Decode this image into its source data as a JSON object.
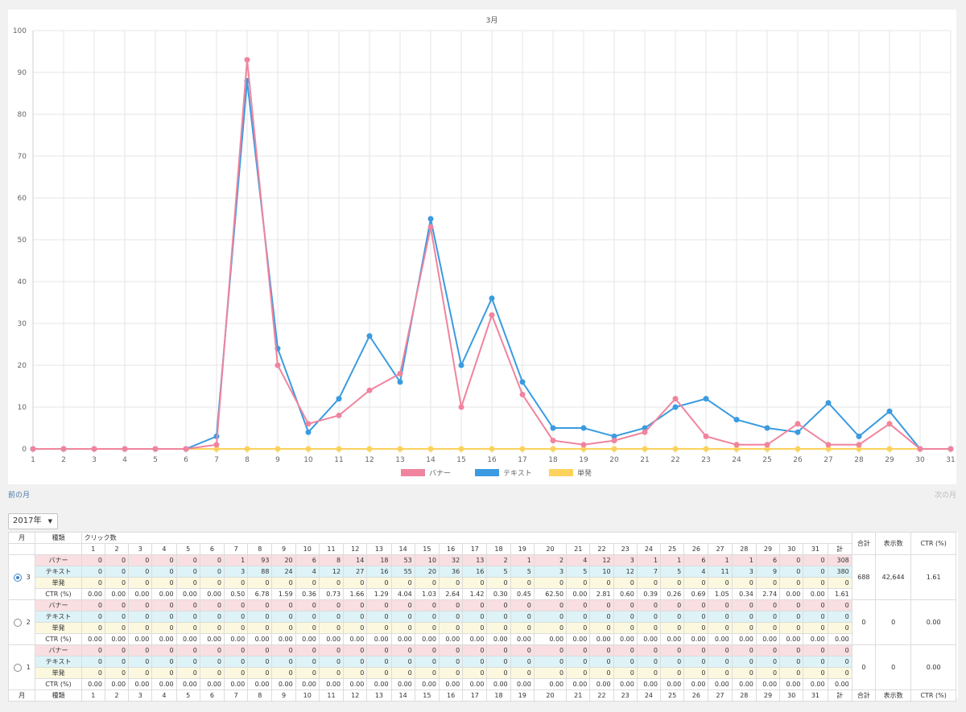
{
  "chart_data": {
    "type": "line",
    "title": "3月",
    "x": [
      1,
      2,
      3,
      4,
      5,
      6,
      7,
      8,
      9,
      10,
      11,
      12,
      13,
      14,
      15,
      16,
      17,
      18,
      19,
      20,
      21,
      22,
      23,
      24,
      25,
      26,
      27,
      28,
      29,
      30,
      31
    ],
    "series": [
      {
        "name": "バナー",
        "color": "#f0849e",
        "values": [
          0,
          0,
          0,
          0,
          0,
          0,
          1,
          93,
          20,
          6,
          8,
          14,
          18,
          53,
          10,
          32,
          13,
          2,
          1,
          2,
          4,
          12,
          3,
          1,
          1,
          6,
          1,
          1,
          6,
          0,
          0
        ]
      },
      {
        "name": "テキスト",
        "color": "#3a9be0",
        "values": [
          0,
          0,
          0,
          0,
          0,
          0,
          3,
          88,
          24,
          4,
          12,
          27,
          16,
          55,
          20,
          36,
          16,
          5,
          5,
          3,
          5,
          10,
          12,
          7,
          5,
          4,
          11,
          3,
          9,
          0,
          0
        ]
      },
      {
        "name": "単発",
        "color": "#fcd25c",
        "values": [
          0,
          0,
          0,
          0,
          0,
          0,
          0,
          0,
          0,
          0,
          0,
          0,
          0,
          0,
          0,
          0,
          0,
          0,
          0,
          0,
          0,
          0,
          0,
          0,
          0,
          0,
          0,
          0,
          0,
          0,
          0
        ]
      }
    ],
    "xlim": [
      1,
      31
    ],
    "ylim": [
      0,
      100
    ],
    "yticks": [
      0,
      10,
      20,
      30,
      40,
      50,
      60,
      70,
      80,
      90,
      100
    ],
    "grid": true,
    "legend": "bottom"
  },
  "nav": {
    "prev": "前の月",
    "next": "次の月"
  },
  "year_select": {
    "value": "2017年",
    "caret": "▼"
  },
  "table": {
    "header": {
      "month": "月",
      "type": "種類",
      "clicks": "クリック数",
      "sum": "計",
      "total": "合計",
      "impressions": "表示数",
      "ctr": "CTR (%)"
    },
    "days": [
      "1",
      "2",
      "3",
      "4",
      "5",
      "6",
      "7",
      "8",
      "9",
      "10",
      "11",
      "12",
      "13",
      "14",
      "15",
      "16",
      "17",
      "18",
      "19",
      "20",
      "21",
      "22",
      "23",
      "24",
      "25",
      "26",
      "27",
      "28",
      "29",
      "30",
      "31"
    ],
    "months": [
      {
        "month": "3",
        "selected": true,
        "total": "688",
        "impressions": "42,644",
        "ctr": "1.61",
        "rows": [
          {
            "type": "バナー",
            "values": [
              "0",
              "0",
              "0",
              "0",
              "0",
              "0",
              "1",
              "93",
              "20",
              "6",
              "8",
              "14",
              "18",
              "53",
              "10",
              "32",
              "13",
              "2",
              "1",
              "2",
              "4",
              "12",
              "3",
              "1",
              "1",
              "6",
              "1",
              "1",
              "6",
              "0",
              "0"
            ],
            "sum": "308"
          },
          {
            "type": "テキスト",
            "values": [
              "0",
              "0",
              "0",
              "0",
              "0",
              "0",
              "3",
              "88",
              "24",
              "4",
              "12",
              "27",
              "16",
              "55",
              "20",
              "36",
              "16",
              "5",
              "5",
              "3",
              "5",
              "10",
              "12",
              "7",
              "5",
              "4",
              "11",
              "3",
              "9",
              "0",
              "0"
            ],
            "sum": "380"
          },
          {
            "type": "単発",
            "values": [
              "0",
              "0",
              "0",
              "0",
              "0",
              "0",
              "0",
              "0",
              "0",
              "0",
              "0",
              "0",
              "0",
              "0",
              "0",
              "0",
              "0",
              "0",
              "0",
              "0",
              "0",
              "0",
              "0",
              "0",
              "0",
              "0",
              "0",
              "0",
              "0",
              "0",
              "0"
            ],
            "sum": "0"
          },
          {
            "type": "CTR (%)",
            "values": [
              "0.00",
              "0.00",
              "0.00",
              "0.00",
              "0.00",
              "0.00",
              "0.50",
              "6.78",
              "1.59",
              "0.36",
              "0.73",
              "1.66",
              "1.29",
              "4.04",
              "1.03",
              "2.64",
              "1.42",
              "0.30",
              "0.45",
              "62.50",
              "0.00",
              "2.81",
              "0.60",
              "0.39",
              "0.26",
              "0.69",
              "1.05",
              "0.34",
              "2.74",
              "0.00",
              "0.00"
            ],
            "sum": "1.61"
          }
        ]
      },
      {
        "month": "2",
        "selected": false,
        "total": "0",
        "impressions": "0",
        "ctr": "0.00",
        "rows": [
          {
            "type": "バナー",
            "values": [
              "0",
              "0",
              "0",
              "0",
              "0",
              "0",
              "0",
              "0",
              "0",
              "0",
              "0",
              "0",
              "0",
              "0",
              "0",
              "0",
              "0",
              "0",
              "0",
              "0",
              "0",
              "0",
              "0",
              "0",
              "0",
              "0",
              "0",
              "0",
              "0",
              "0",
              "0"
            ],
            "sum": "0"
          },
          {
            "type": "テキスト",
            "values": [
              "0",
              "0",
              "0",
              "0",
              "0",
              "0",
              "0",
              "0",
              "0",
              "0",
              "0",
              "0",
              "0",
              "0",
              "0",
              "0",
              "0",
              "0",
              "0",
              "0",
              "0",
              "0",
              "0",
              "0",
              "0",
              "0",
              "0",
              "0",
              "0",
              "0",
              "0"
            ],
            "sum": "0"
          },
          {
            "type": "単発",
            "values": [
              "0",
              "0",
              "0",
              "0",
              "0",
              "0",
              "0",
              "0",
              "0",
              "0",
              "0",
              "0",
              "0",
              "0",
              "0",
              "0",
              "0",
              "0",
              "0",
              "0",
              "0",
              "0",
              "0",
              "0",
              "0",
              "0",
              "0",
              "0",
              "0",
              "0",
              "0"
            ],
            "sum": "0"
          },
          {
            "type": "CTR (%)",
            "values": [
              "0.00",
              "0.00",
              "0.00",
              "0.00",
              "0.00",
              "0.00",
              "0.00",
              "0.00",
              "0.00",
              "0.00",
              "0.00",
              "0.00",
              "0.00",
              "0.00",
              "0.00",
              "0.00",
              "0.00",
              "0.00",
              "0.00",
              "0.00",
              "0.00",
              "0.00",
              "0.00",
              "0.00",
              "0.00",
              "0.00",
              "0.00",
              "0.00",
              "0.00",
              "0.00",
              "0.00"
            ],
            "sum": "0.00"
          }
        ]
      },
      {
        "month": "1",
        "selected": false,
        "total": "0",
        "impressions": "0",
        "ctr": "0.00",
        "rows": [
          {
            "type": "バナー",
            "values": [
              "0",
              "0",
              "0",
              "0",
              "0",
              "0",
              "0",
              "0",
              "0",
              "0",
              "0",
              "0",
              "0",
              "0",
              "0",
              "0",
              "0",
              "0",
              "0",
              "0",
              "0",
              "0",
              "0",
              "0",
              "0",
              "0",
              "0",
              "0",
              "0",
              "0",
              "0"
            ],
            "sum": "0"
          },
          {
            "type": "テキスト",
            "values": [
              "0",
              "0",
              "0",
              "0",
              "0",
              "0",
              "0",
              "0",
              "0",
              "0",
              "0",
              "0",
              "0",
              "0",
              "0",
              "0",
              "0",
              "0",
              "0",
              "0",
              "0",
              "0",
              "0",
              "0",
              "0",
              "0",
              "0",
              "0",
              "0",
              "0",
              "0"
            ],
            "sum": "0"
          },
          {
            "type": "単発",
            "values": [
              "0",
              "0",
              "0",
              "0",
              "0",
              "0",
              "0",
              "0",
              "0",
              "0",
              "0",
              "0",
              "0",
              "0",
              "0",
              "0",
              "0",
              "0",
              "0",
              "0",
              "0",
              "0",
              "0",
              "0",
              "0",
              "0",
              "0",
              "0",
              "0",
              "0",
              "0"
            ],
            "sum": "0"
          },
          {
            "type": "CTR (%)",
            "values": [
              "0.00",
              "0.00",
              "0.00",
              "0.00",
              "0.00",
              "0.00",
              "0.00",
              "0.00",
              "0.00",
              "0.00",
              "0.00",
              "0.00",
              "0.00",
              "0.00",
              "0.00",
              "0.00",
              "0.00",
              "0.00",
              "0.00",
              "0.00",
              "0.00",
              "0.00",
              "0.00",
              "0.00",
              "0.00",
              "0.00",
              "0.00",
              "0.00",
              "0.00",
              "0.00",
              "0.00"
            ],
            "sum": "0.00"
          }
        ]
      }
    ]
  }
}
